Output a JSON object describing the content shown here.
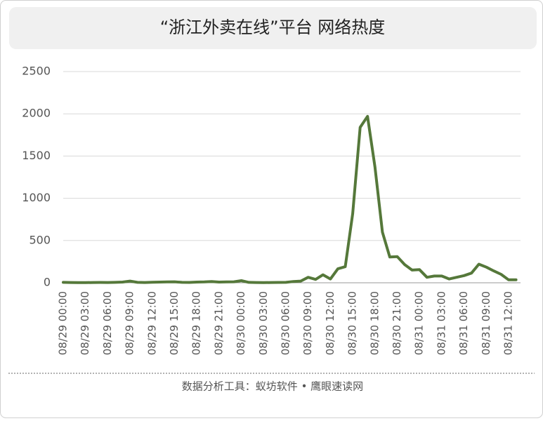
{
  "chart_data": {
    "type": "line",
    "title": "“浙江外卖在线”平台 网络热度",
    "footer": "数据分析工具：蚁坊软件 • 鹰眼速读网",
    "categories": [
      "08/29 00:00",
      null,
      null,
      "08/29 03:00",
      null,
      null,
      "08/29 06:00",
      null,
      null,
      "08/29 09:00",
      null,
      null,
      "08/29 12:00",
      null,
      null,
      "08/29 15:00",
      null,
      null,
      "08/29 18:00",
      null,
      null,
      "08/29 21:00",
      null,
      null,
      "08/30 00:00",
      null,
      null,
      "08/30 03:00",
      null,
      null,
      "08/30 06:00",
      null,
      null,
      "08/30 09:00",
      null,
      null,
      "08/30 12:00",
      null,
      null,
      "08/30 15:00",
      null,
      null,
      "08/30 18:00",
      null,
      null,
      "08/30 21:00",
      null,
      null,
      "08/31 00:00",
      null,
      null,
      "08/31 03:00",
      null,
      null,
      "08/31 06:00",
      null,
      null,
      "08/31 09:00",
      null,
      null,
      "08/31 12:00",
      null
    ],
    "series": [
      {
        "color": "#55783a",
        "values": [
          5,
          3,
          2,
          2,
          3,
          4,
          3,
          5,
          8,
          20,
          5,
          3,
          6,
          8,
          10,
          12,
          5,
          4,
          8,
          10,
          15,
          8,
          10,
          12,
          25,
          5,
          3,
          2,
          3,
          4,
          5,
          15,
          20,
          65,
          40,
          95,
          45,
          165,
          190,
          820,
          1840,
          1970,
          1370,
          600,
          305,
          310,
          215,
          150,
          155,
          65,
          80,
          80,
          45,
          65,
          85,
          115,
          220,
          185,
          140,
          100,
          35,
          35
        ]
      }
    ],
    "ylim": [
      0,
      2500
    ],
    "yticks": [
      0,
      500,
      1000,
      1500,
      2000,
      2500
    ],
    "grid": true
  }
}
